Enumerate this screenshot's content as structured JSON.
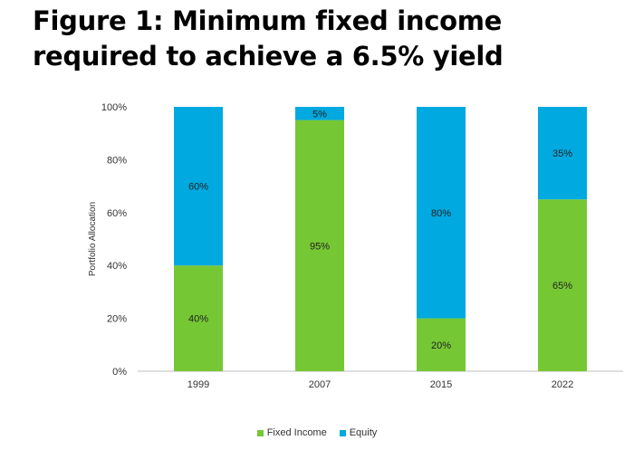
{
  "title": "Figure 1: Minimum fixed income required to achieve a 6.5% yield",
  "colors": {
    "fixed_income": "#76c734",
    "equity": "#00a9e0"
  },
  "chart_data": {
    "type": "bar",
    "stacked": true,
    "categories": [
      "1999",
      "2007",
      "2015",
      "2022"
    ],
    "series": [
      {
        "name": "Fixed Income",
        "values": [
          40,
          95,
          20,
          65
        ],
        "labels": [
          "40%",
          "95%",
          "20%",
          "65%"
        ]
      },
      {
        "name": "Equity",
        "values": [
          60,
          5,
          80,
          35
        ],
        "labels": [
          "60%",
          "5%",
          "80%",
          "35%"
        ]
      }
    ],
    "ylabel": "Portfolio Allocation",
    "xlabel": "",
    "ylim": [
      0,
      100
    ],
    "yticks": [
      "0%",
      "20%",
      "40%",
      "60%",
      "80%",
      "100%"
    ],
    "legend": "bottom",
    "grid": false
  }
}
